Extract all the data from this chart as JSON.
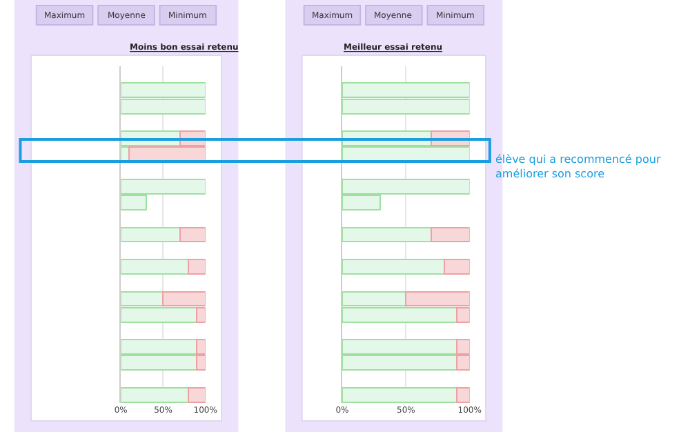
{
  "chart_data": [
    {
      "type": "bar",
      "orientation": "horizontal",
      "stacked": true,
      "title": "Moins bon essai retenu",
      "annotations": [
        "Maximum",
        "Moyenne",
        "Minimum"
      ],
      "categories": [
        null,
        null,
        null,
        null,
        null,
        null,
        null,
        null,
        null,
        null,
        null,
        null,
        null,
        null,
        null,
        null,
        null,
        null,
        null,
        null,
        null
      ],
      "series": [
        {
          "color": "#e3f8e8",
          "values": [
            null,
            100,
            100,
            null,
            70,
            10,
            null,
            100,
            30,
            null,
            70,
            null,
            80,
            null,
            50,
            90,
            null,
            90,
            90,
            null,
            80
          ]
        },
        {
          "color": "#f8d7d9",
          "values": [
            null,
            null,
            null,
            null,
            30,
            90,
            null,
            null,
            null,
            null,
            30,
            null,
            20,
            null,
            50,
            10,
            null,
            10,
            10,
            null,
            20
          ]
        }
      ],
      "xlim": [
        0,
        100
      ],
      "xticks": [
        {
          "value": 0,
          "label": "0%"
        },
        {
          "value": 50,
          "label": "50%"
        },
        {
          "value": 100,
          "label": "100%"
        }
      ],
      "grid": "x",
      "tick_labels": "x"
    },
    {
      "type": "bar",
      "orientation": "horizontal",
      "stacked": true,
      "title": "Meilleur essai retenu",
      "annotations": [
        "Maximum",
        "Moyenne",
        "Minimum",
        "élève qui a recommencé pour améliorer son score"
      ],
      "categories": [
        null,
        null,
        null,
        null,
        null,
        null,
        null,
        null,
        null,
        null,
        null,
        null,
        null,
        null,
        null,
        null,
        null,
        null,
        null,
        null,
        null
      ],
      "series": [
        {
          "color": "#e3f8e8",
          "values": [
            null,
            100,
            100,
            null,
            70,
            100,
            null,
            100,
            30,
            null,
            70,
            null,
            80,
            null,
            50,
            90,
            null,
            90,
            90,
            null,
            90
          ]
        },
        {
          "color": "#f8d7d9",
          "values": [
            null,
            null,
            null,
            null,
            30,
            null,
            null,
            null,
            null,
            null,
            30,
            null,
            20,
            null,
            50,
            10,
            null,
            10,
            10,
            null,
            10
          ]
        }
      ],
      "xlim": [
        0,
        100
      ],
      "xticks": [
        {
          "value": 0,
          "label": "0%"
        },
        {
          "value": 50,
          "label": "50%"
        },
        {
          "value": 100,
          "label": "100%"
        }
      ],
      "grid": "x",
      "tick_labels": "x"
    }
  ]
}
